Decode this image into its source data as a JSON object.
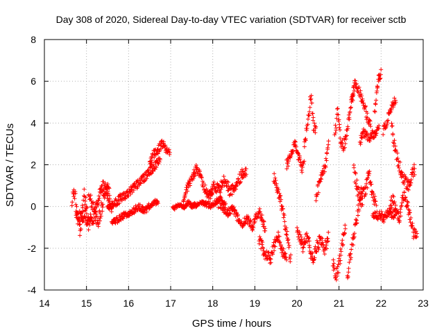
{
  "chart_data": {
    "type": "scatter",
    "title": "Day 308 of 2020, Sidereal Day-to-day VTEC variation (SDTVAR) for receiver sctb",
    "xlabel": "GPS time / hours",
    "ylabel": "SDTVAR / TECUs",
    "xlim": [
      14,
      23
    ],
    "ylim": [
      -4,
      8
    ],
    "xticks": [
      "14",
      "15",
      "16",
      "17",
      "18",
      "19",
      "20",
      "21",
      "22",
      "23"
    ],
    "yticks": [
      "-4",
      "-2",
      "0",
      "2",
      "4",
      "6",
      "8"
    ],
    "grid": true,
    "marker": "plus",
    "series": [
      {
        "name": "SDTVAR",
        "color": "#ff0000",
        "segments": [
          {
            "x0": 14.65,
            "x1": 15.1,
            "y": [
              0.2,
              0.9,
              0.1,
              -0.6,
              -1.2,
              -0.3,
              0.6,
              0.0,
              -0.9,
              -0.2
            ],
            "noise": 0.35
          },
          {
            "x0": 14.75,
            "x1": 15.6,
            "y": [
              -0.2,
              -0.6,
              -0.4,
              -0.9,
              -0.5,
              0.3,
              1.1,
              0.6,
              -0.1
            ],
            "noise": 0.3
          },
          {
            "x0": 15.05,
            "x1": 15.55,
            "y": [
              0.6,
              0.2,
              -0.4,
              -0.8,
              -0.3,
              0.4,
              1.2,
              0.8
            ],
            "noise": 0.3
          },
          {
            "x0": 15.5,
            "x1": 16.75,
            "y": [
              0.0,
              0.1,
              0.4,
              0.6,
              0.9,
              1.2,
              1.5,
              1.9,
              2.2
            ],
            "noise": 0.2
          },
          {
            "x0": 15.6,
            "x1": 16.7,
            "y": [
              -0.8,
              -0.6,
              -0.4,
              -0.3,
              0.0,
              -0.2,
              0.1,
              0.3
            ],
            "noise": 0.15
          },
          {
            "x0": 16.5,
            "x1": 16.98,
            "y": [
              2.1,
              2.5,
              2.7,
              3.0,
              2.8,
              2.6
            ],
            "noise": 0.2
          },
          {
            "x0": 17.05,
            "x1": 17.6,
            "y": [
              -0.1,
              0.0,
              0.1,
              0.0,
              0.2,
              0.0,
              0.1
            ],
            "noise": 0.1
          },
          {
            "x0": 17.3,
            "x1": 18.0,
            "y": [
              0.4,
              0.9,
              1.3,
              1.8,
              1.5,
              0.9,
              0.5,
              0.8
            ],
            "noise": 0.2
          },
          {
            "x0": 17.5,
            "x1": 18.3,
            "y": [
              0.0,
              0.1,
              0.2,
              0.1,
              0.0,
              0.2,
              0.4,
              0.1
            ],
            "noise": 0.12
          },
          {
            "x0": 17.9,
            "x1": 18.8,
            "y": [
              0.3,
              1.0,
              0.8,
              1.3,
              0.7,
              0.9,
              1.5,
              1.7
            ],
            "noise": 0.25
          },
          {
            "x0": 18.1,
            "x1": 18.95,
            "y": [
              0.2,
              0.0,
              -0.3,
              -0.1,
              -0.5,
              -0.8,
              -0.6,
              -1.0
            ],
            "noise": 0.2
          },
          {
            "x0": 18.95,
            "x1": 19.25,
            "y": [
              -0.9,
              -0.5,
              -0.2,
              -0.6,
              -1.2
            ],
            "noise": 0.2
          },
          {
            "x0": 19.1,
            "x1": 19.75,
            "y": [
              -1.5,
              -2.0,
              -2.4,
              -2.5,
              -1.8,
              -1.4,
              -2.2,
              -2.6
            ],
            "noise": 0.3
          },
          {
            "x0": 19.45,
            "x1": 19.85,
            "y": [
              1.4,
              0.9,
              0.3,
              -0.4,
              -1.5,
              -2.5
            ],
            "noise": 0.25
          },
          {
            "x0": 19.75,
            "x1": 20.1,
            "y": [
              2.0,
              2.3,
              2.6,
              3.0,
              2.5,
              2.0
            ],
            "noise": 0.25
          },
          {
            "x0": 20.0,
            "x1": 20.3,
            "y": [
              -1.0,
              -1.5,
              -2.0,
              -1.4,
              -1.8
            ],
            "noise": 0.25
          },
          {
            "x0": 20.1,
            "x1": 20.45,
            "y": [
              1.8,
              2.2,
              3.5,
              4.5,
              5.2,
              4.0,
              3.6
            ],
            "noise": 0.3
          },
          {
            "x0": 20.3,
            "x1": 20.75,
            "y": [
              -2.1,
              -2.5,
              -1.9,
              -1.6,
              -2.0,
              -1.5
            ],
            "noise": 0.3
          },
          {
            "x0": 20.45,
            "x1": 20.75,
            "y": [
              0.4,
              1.0,
              1.5,
              2.0,
              3.0
            ],
            "noise": 0.25
          },
          {
            "x0": 20.85,
            "x1": 21.15,
            "y": [
              -2.6,
              -3.3,
              -2.8,
              -1.8,
              -1.0
            ],
            "noise": 0.3
          },
          {
            "x0": 20.9,
            "x1": 21.35,
            "y": [
              3.5,
              4.5,
              3.3,
              2.8,
              3.2,
              4.0,
              4.8,
              5.5
            ],
            "noise": 0.3
          },
          {
            "x0": 21.2,
            "x1": 21.55,
            "y": [
              -3.4,
              -2.5,
              -1.8,
              -1.2,
              -0.5,
              0.2,
              0.8
            ],
            "noise": 0.3
          },
          {
            "x0": 21.3,
            "x1": 21.75,
            "y": [
              5.2,
              5.9,
              5.6,
              5.0,
              4.4,
              3.8
            ],
            "noise": 0.25
          },
          {
            "x0": 21.35,
            "x1": 21.9,
            "y": [
              1.8,
              0.8,
              0.3,
              0.9,
              1.5,
              0.5,
              -0.3
            ],
            "noise": 0.35
          },
          {
            "x0": 21.5,
            "x1": 21.95,
            "y": [
              3.0,
              3.6,
              3.4,
              3.3,
              3.5,
              3.4,
              4.0
            ],
            "noise": 0.2
          },
          {
            "x0": 21.8,
            "x1": 22.35,
            "y": [
              -0.3,
              -0.5,
              -0.4,
              -0.6,
              -0.3,
              -0.5,
              -0.2
            ],
            "noise": 0.2
          },
          {
            "x0": 21.85,
            "x1": 22.0,
            "y": [
              4.5,
              5.6,
              6.2,
              6.4
            ],
            "noise": 0.2
          },
          {
            "x0": 22.05,
            "x1": 22.35,
            "y": [
              3.6,
              4.0,
              4.5,
              4.9,
              5.1
            ],
            "noise": 0.2
          },
          {
            "x0": 22.25,
            "x1": 22.8,
            "y": [
              3.8,
              2.8,
              2.2,
              1.5,
              1.2,
              1.0,
              1.5,
              1.8
            ],
            "noise": 0.3
          },
          {
            "x0": 22.2,
            "x1": 22.85,
            "y": [
              0.0,
              0.3,
              -0.3,
              -0.5,
              0.5,
              0.2,
              -0.4,
              -1.2,
              -1.5
            ],
            "noise": 0.3
          }
        ]
      }
    ]
  }
}
